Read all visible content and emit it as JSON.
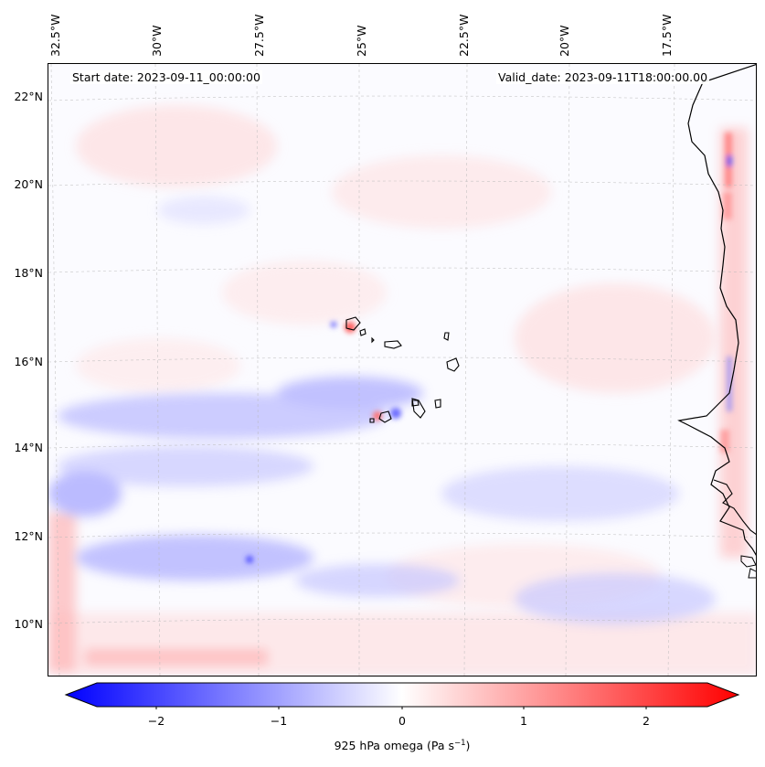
{
  "map": {
    "start_date": "Start date: 2023-09-11_00:00:00",
    "valid_date": "Valid_date: 2023-09-11T18:00:00.00",
    "lon_labels": [
      "32.5°W",
      "30°W",
      "27.5°W",
      "25°W",
      "22.5°W",
      "20°W",
      "17.5°W"
    ],
    "lat_labels": [
      "22°N",
      "20°N",
      "18°N",
      "16°N",
      "14°N",
      "12°N",
      "10°N"
    ],
    "field_colors": {
      "negative": "#0000ff",
      "neutral": "#ffffff",
      "positive": "#ff0000"
    }
  },
  "colorbar": {
    "ticks": [
      "−2",
      "−1",
      "0",
      "1",
      "2"
    ],
    "label_main": "925 hPa omega (Pa s",
    "label_exp": "−1",
    "label_end": ")",
    "range": [
      -2.6,
      2.6
    ]
  }
}
